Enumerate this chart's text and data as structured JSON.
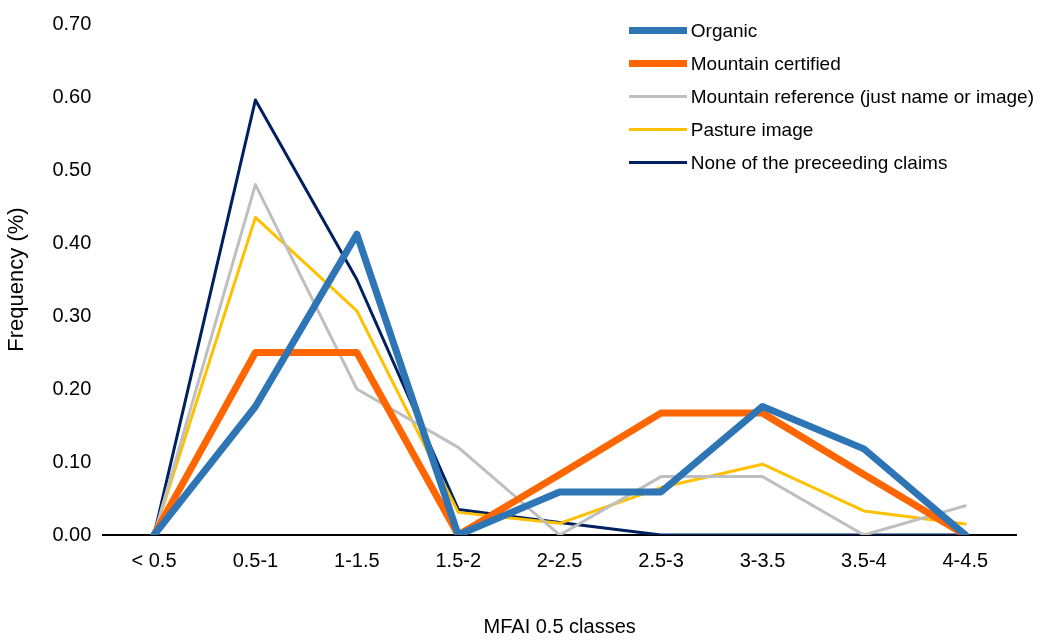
{
  "chart_data": {
    "type": "line",
    "xlabel": "MFAI 0.5 classes",
    "ylabel": "Frequency (%)",
    "categories": [
      "< 0.5",
      "0.5-1",
      "1-1.5",
      "1.5-2",
      "2-2.5",
      "2.5-3",
      "3-3.5",
      "3.5-4",
      "4-4.5"
    ],
    "ylim": [
      0,
      0.7
    ],
    "yticks": [
      {
        "value": 0,
        "label": "0.00"
      },
      {
        "value": 0.1,
        "label": "0.10"
      },
      {
        "value": 0.2,
        "label": "0.20"
      },
      {
        "value": 0.3,
        "label": "0.30"
      },
      {
        "value": 0.4,
        "label": "0.40"
      },
      {
        "value": 0.5,
        "label": "0.50"
      },
      {
        "value": 0.6,
        "label": "0.60"
      },
      {
        "value": 0.7,
        "label": "0.70"
      }
    ],
    "grid": false,
    "legend": "top right",
    "marker": "none",
    "line_style": "solid",
    "series": [
      {
        "name": "Organic",
        "color": "#2e75b6",
        "values": [
          0,
          0.176,
          0.412,
          0,
          0.059,
          0.059,
          0.176,
          0.118,
          0
        ]
      },
      {
        "name": "Mountain certified",
        "color": "#ff6600",
        "values": [
          0,
          0.25,
          0.25,
          0,
          0.083,
          0.167,
          0.167,
          0.083,
          0
        ]
      },
      {
        "name": "Mountain reference (just name or image)",
        "color": "#bfbfbf",
        "values": [
          0,
          0.48,
          0.2,
          0.12,
          0,
          0.08,
          0.08,
          0,
          0.04
        ]
      },
      {
        "name": "Pasture image",
        "color": "#ffc000",
        "values": [
          0,
          0.435,
          0.307,
          0.031,
          0.016,
          0.065,
          0.097,
          0.033,
          0.015
        ]
      },
      {
        "name": "None of the preceeding claims",
        "color": "#002060",
        "values": [
          0,
          0.596,
          0.35,
          0.035,
          0.017,
          0,
          0,
          0,
          0
        ]
      }
    ]
  }
}
